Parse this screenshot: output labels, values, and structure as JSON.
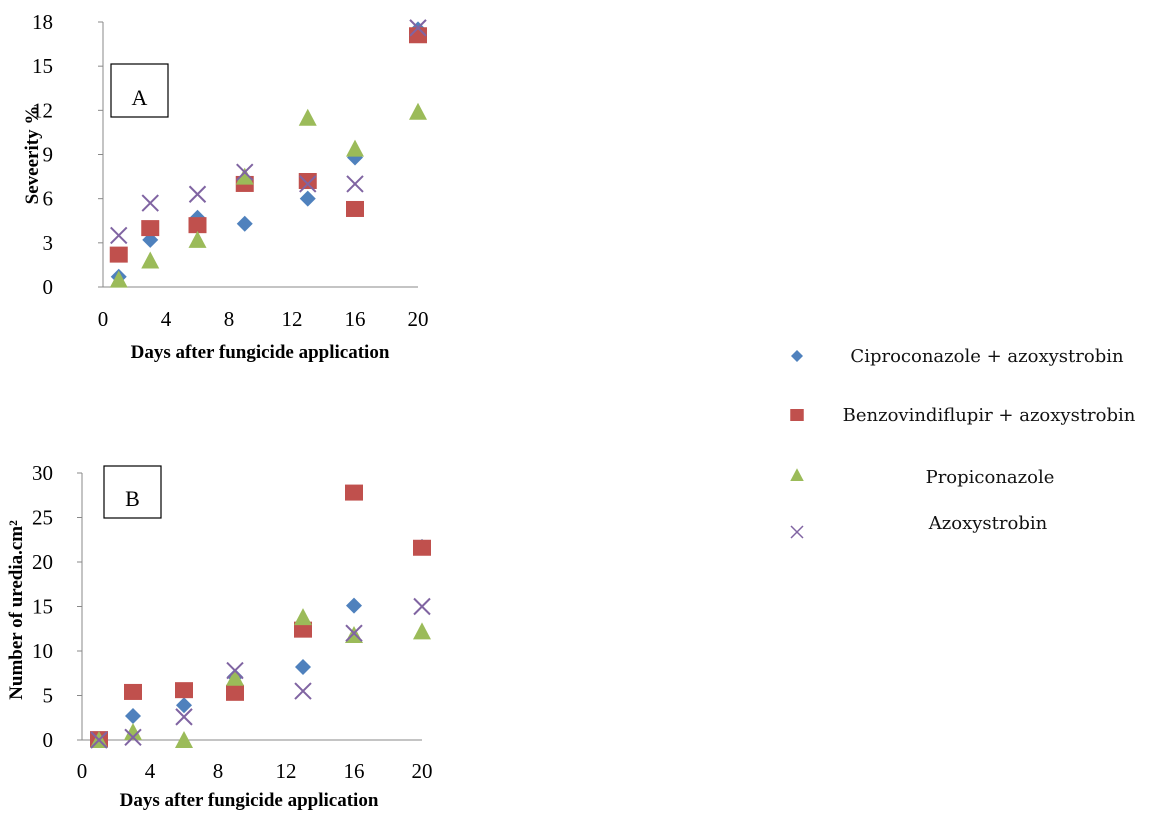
{
  "colors": {
    "ciproconazole": "#4f81bd",
    "benzovindiflupir": "#c0504d",
    "propiconazole": "#9bbb59",
    "azoxystrobin": "#8064a2"
  },
  "legend": {
    "position": "right",
    "items": [
      {
        "label": "Ciproconazole + azoxystrobin",
        "marker": "diamond",
        "color_key": "ciproconazole"
      },
      {
        "label": "Benzovindiflupir + azoxystrobin",
        "marker": "square",
        "color_key": "benzovindiflupir"
      },
      {
        "label": "Propiconazole",
        "marker": "triangle",
        "color_key": "propiconazole"
      },
      {
        "label": "Azoxystrobin",
        "marker": "x",
        "color_key": "azoxystrobin"
      }
    ]
  },
  "chart_data": [
    {
      "type": "scatter",
      "panel_label": "A",
      "xlabel": "Days after fungicide application",
      "ylabel": "Seveerity %",
      "xlim": [
        0,
        20
      ],
      "ylim": [
        0,
        18
      ],
      "x_ticks": [
        0,
        4,
        8,
        12,
        16,
        20
      ],
      "y_ticks": [
        0,
        3,
        6,
        9,
        12,
        15,
        18
      ],
      "grid": false,
      "series": [
        {
          "name": "Ciproconazole + azoxystrobin",
          "marker": "diamond",
          "color_key": "ciproconazole",
          "x": [
            1,
            3,
            6,
            9,
            13,
            16,
            20
          ],
          "y": [
            0.7,
            3.2,
            4.7,
            4.3,
            6.0,
            8.8,
            17.5
          ]
        },
        {
          "name": "Benzovindiflupir + azoxystrobin",
          "marker": "square",
          "color_key": "benzovindiflupir",
          "x": [
            1,
            3,
            6,
            9,
            13,
            16,
            20
          ],
          "y": [
            2.2,
            4.0,
            4.2,
            7.0,
            7.2,
            5.3,
            17.1
          ]
        },
        {
          "name": "Propiconazole",
          "marker": "triangle",
          "color_key": "propiconazole",
          "x": [
            1,
            3,
            6,
            9,
            13,
            16,
            20
          ],
          "y": [
            0.5,
            1.8,
            3.2,
            7.5,
            11.5,
            9.4,
            11.9
          ]
        },
        {
          "name": "Azoxystrobin",
          "marker": "x",
          "color_key": "azoxystrobin",
          "x": [
            1,
            3,
            6,
            9,
            13,
            16,
            20
          ],
          "y": [
            3.5,
            5.7,
            6.3,
            7.8,
            7.0,
            7.0,
            17.6
          ]
        }
      ]
    },
    {
      "type": "scatter",
      "panel_label": "B",
      "xlabel": "Days after fungicide application",
      "ylabel": "Number of uredia.cm²",
      "xlim": [
        0,
        20
      ],
      "ylim": [
        0,
        30
      ],
      "x_ticks": [
        0,
        4,
        8,
        12,
        16,
        20
      ],
      "y_ticks": [
        0,
        5,
        10,
        15,
        20,
        25,
        30
      ],
      "grid": false,
      "series": [
        {
          "name": "Ciproconazole + azoxystrobin",
          "marker": "diamond",
          "color_key": "ciproconazole",
          "x": [
            1,
            3,
            6,
            9,
            13,
            16,
            20
          ],
          "y": [
            0.1,
            2.7,
            3.9,
            7.1,
            8.2,
            15.1,
            21.7
          ]
        },
        {
          "name": "Benzovindiflupir + azoxystrobin",
          "marker": "square",
          "color_key": "benzovindiflupir",
          "x": [
            1,
            3,
            6,
            9,
            13,
            16,
            20
          ],
          "y": [
            0.1,
            5.4,
            5.6,
            5.3,
            12.4,
            27.8,
            21.6
          ]
        },
        {
          "name": "Propiconazole",
          "marker": "triangle",
          "color_key": "propiconazole",
          "x": [
            1,
            3,
            6,
            9,
            13,
            16,
            20
          ],
          "y": [
            0.0,
            0.9,
            0.0,
            7.0,
            13.8,
            11.8,
            12.2
          ]
        },
        {
          "name": "Azoxystrobin",
          "marker": "x",
          "color_key": "azoxystrobin",
          "x": [
            1,
            3,
            6,
            9,
            13,
            16,
            20
          ],
          "y": [
            0.0,
            0.3,
            2.6,
            7.8,
            5.5,
            12.0,
            15.0
          ]
        }
      ]
    }
  ]
}
